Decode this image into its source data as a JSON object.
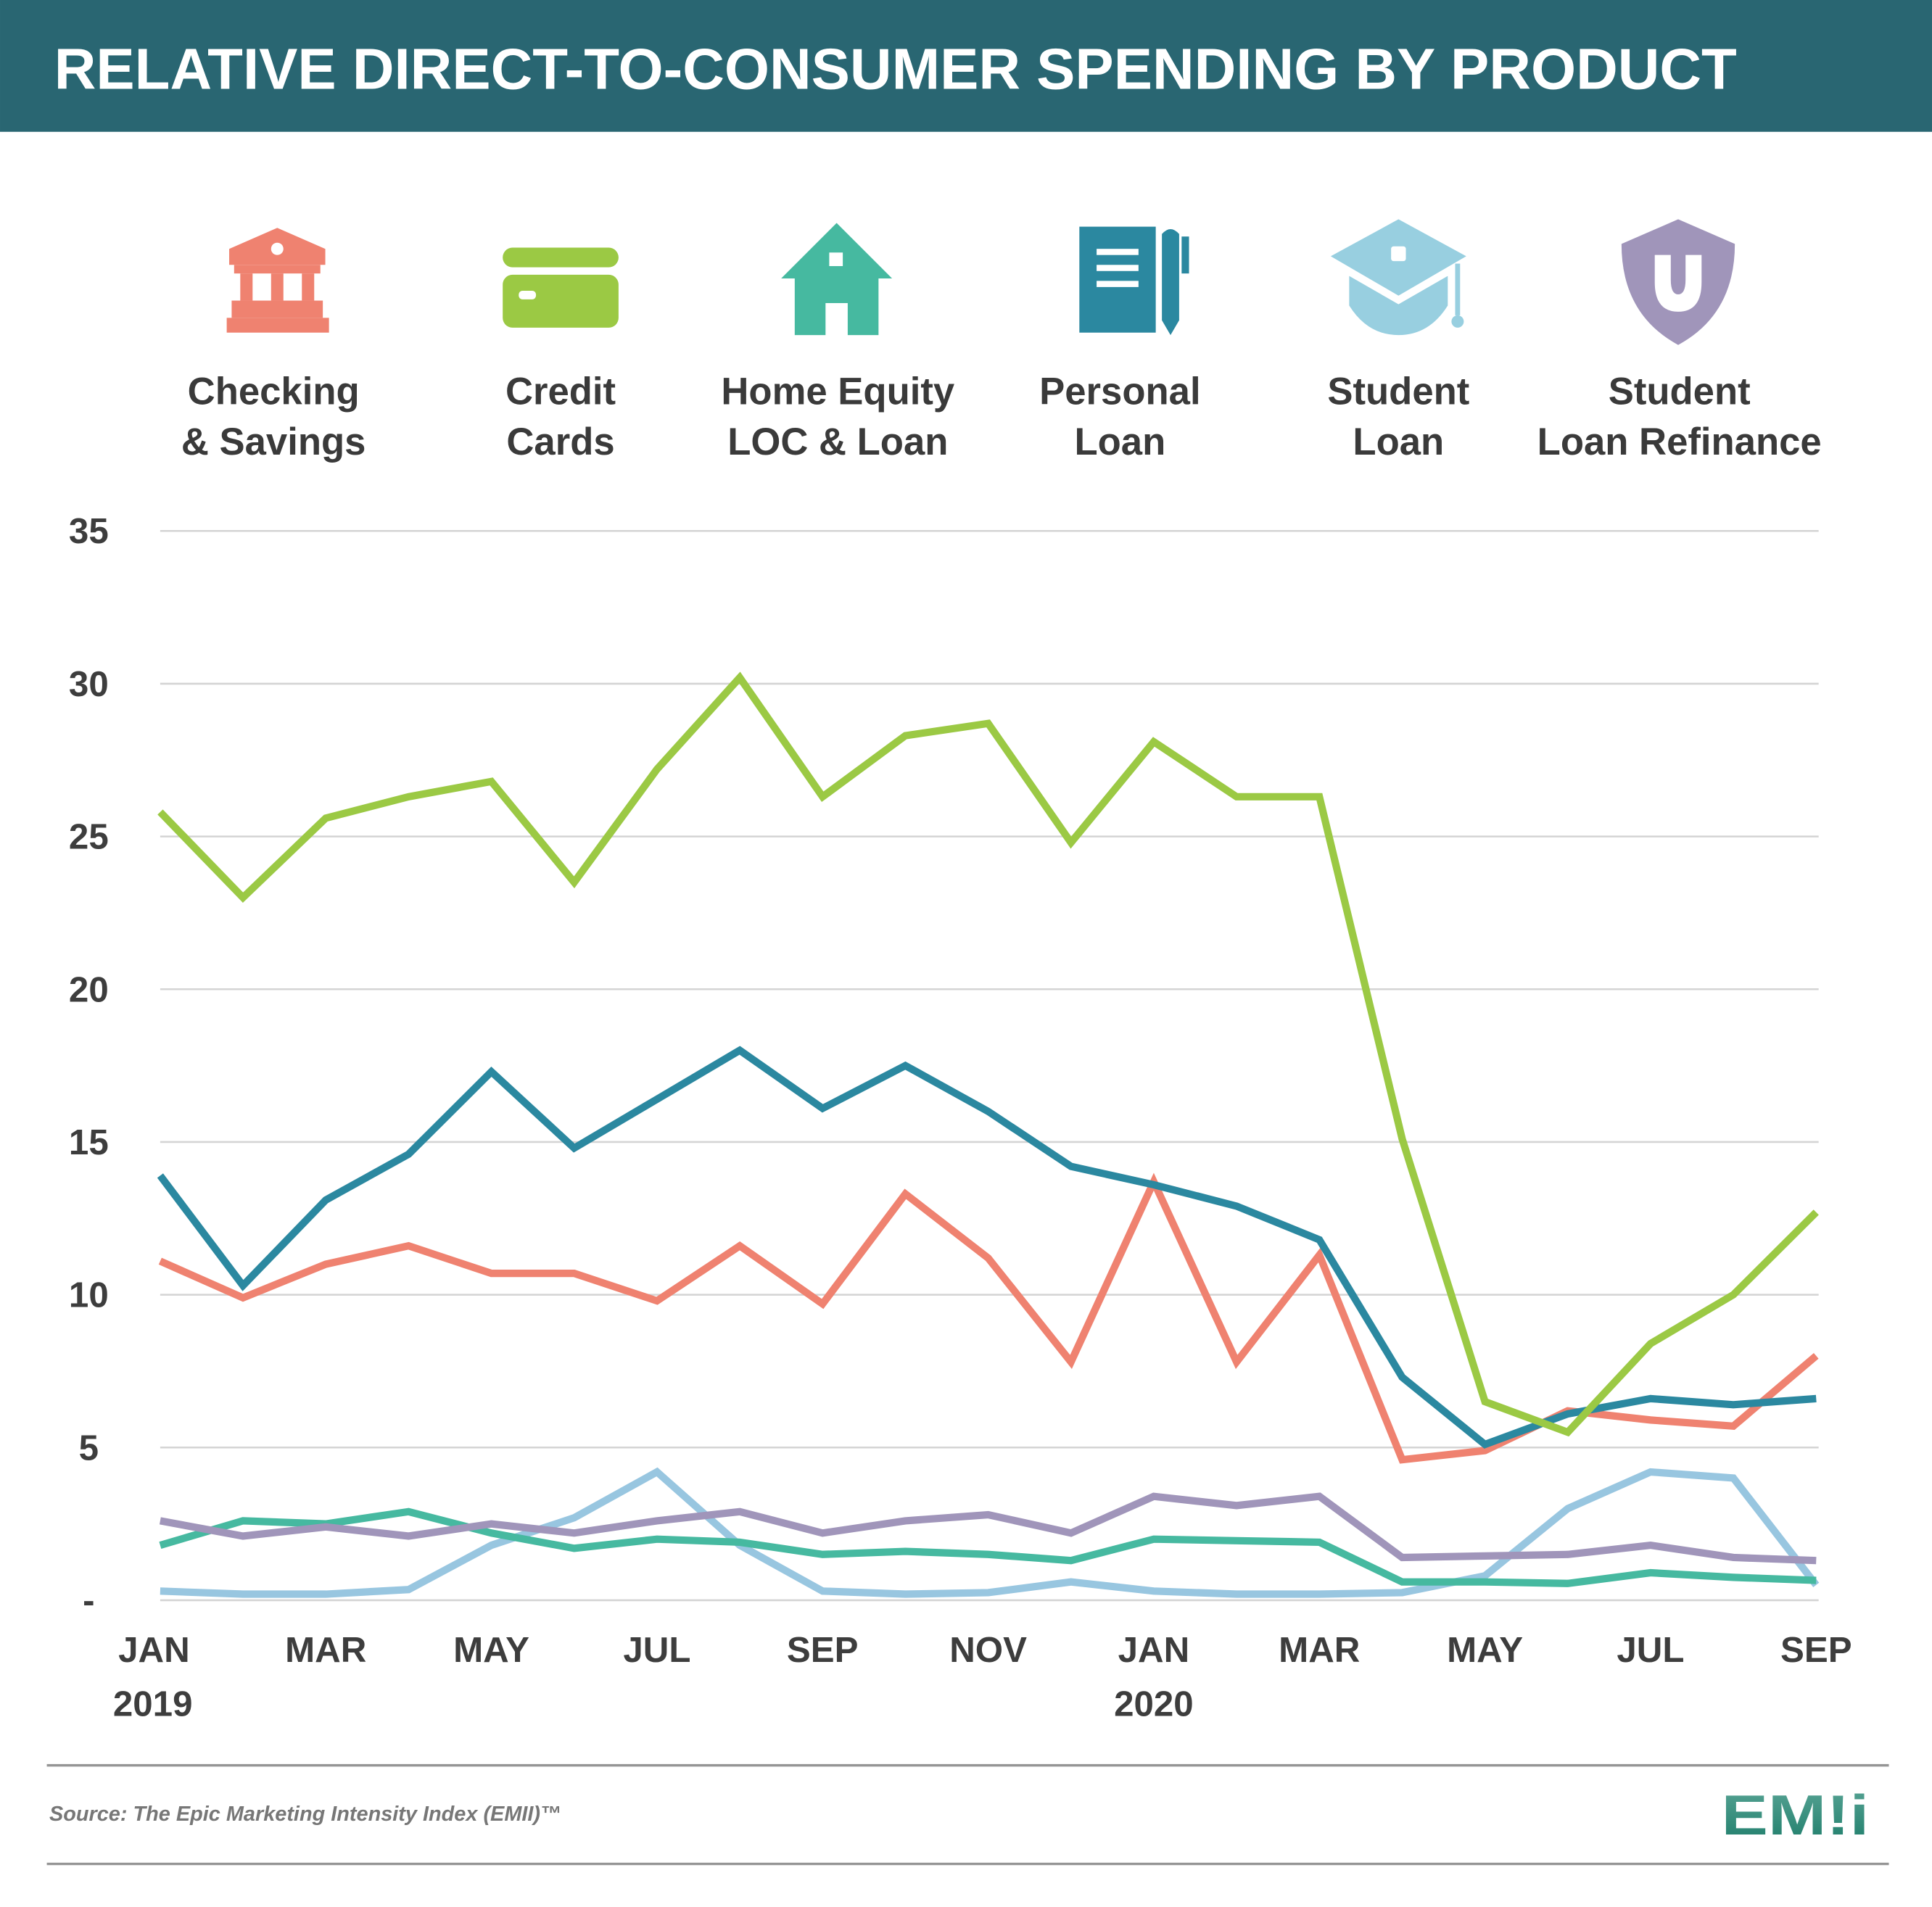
{
  "header": {
    "title": "RELATIVE DIRECT-TO-CONSUMER SPENDING BY PRODUCT",
    "background": "#296672"
  },
  "footer": {
    "source": "Source: The Epic Marketing Intensity Index (EMII)™",
    "logo_text": "EMII"
  },
  "legend": [
    {
      "line1": "Checking",
      "line2": "& Savings",
      "icon": "bank-icon",
      "color": "#ef8270"
    },
    {
      "line1": "Credit",
      "line2": "Cards",
      "icon": "credit-card-icon",
      "color": "#9bc944"
    },
    {
      "line1": "Home Equity",
      "line2": "LOC & Loan",
      "icon": "house-icon",
      "color": "#46b9a0"
    },
    {
      "line1": "Personal",
      "line2": "Loan",
      "icon": "notebook-pen-icon",
      "color": "#2b88a0"
    },
    {
      "line1": "Student",
      "line2": "Loan",
      "icon": "graduation-cap-icon",
      "color": "#98cfe0"
    },
    {
      "line1": "Student",
      "line2": "Loan Refinance",
      "icon": "shield-u-icon",
      "color": "#a095ba"
    }
  ],
  "chart_data": {
    "type": "line",
    "title": "RELATIVE DIRECT-TO-CONSUMER SPENDING BY PRODUCT",
    "xlabel": "",
    "ylabel": "",
    "ylim": [
      0,
      35
    ],
    "grid": true,
    "legend_position": "top",
    "y_ticks": [
      "35",
      "30",
      "25",
      "20",
      "15",
      "10",
      "5",
      "-"
    ],
    "y_tick_values": [
      35,
      30,
      25,
      20,
      15,
      10,
      5,
      0
    ],
    "x": [
      "Jan 2019",
      "Feb 2019",
      "Mar 2019",
      "Apr 2019",
      "May 2019",
      "Jun 2019",
      "Jul 2019",
      "Aug 2019",
      "Sep 2019",
      "Oct 2019",
      "Nov 2019",
      "Dec 2019",
      "Jan 2020",
      "Feb 2020",
      "Mar 2020",
      "Apr 2020",
      "May 2020",
      "Jun 2020",
      "Jul 2020",
      "Aug 2020",
      "Sep 2020"
    ],
    "x_tick_labels": [
      {
        "label": "JAN",
        "year": "2019",
        "index": 0
      },
      {
        "label": "MAR",
        "index": 2
      },
      {
        "label": "MAY",
        "index": 4
      },
      {
        "label": "JUL",
        "index": 6
      },
      {
        "label": "SEP",
        "index": 8
      },
      {
        "label": "NOV",
        "index": 10
      },
      {
        "label": "JAN",
        "year": "2020",
        "index": 12
      },
      {
        "label": "MAR",
        "index": 14
      },
      {
        "label": "MAY",
        "index": 16
      },
      {
        "label": "JUL",
        "index": 18
      },
      {
        "label": "SEP",
        "index": 20
      }
    ],
    "series": [
      {
        "name": "Checking & Savings",
        "color": "#ef8270",
        "values": [
          11.1,
          9.9,
          11.0,
          11.6,
          10.7,
          10.7,
          9.8,
          11.6,
          9.7,
          13.3,
          11.2,
          7.8,
          13.7,
          7.8,
          11.3,
          4.6,
          4.9,
          6.2,
          5.9,
          5.7,
          8.0
        ]
      },
      {
        "name": "Credit Cards",
        "color": "#9bc944",
        "values": [
          25.8,
          23.0,
          25.6,
          26.3,
          26.8,
          23.5,
          27.2,
          30.2,
          26.3,
          28.3,
          28.7,
          24.8,
          28.1,
          26.3,
          26.3,
          15.1,
          6.5,
          5.5,
          8.4,
          10.0,
          12.7
        ]
      },
      {
        "name": "Home Equity LOC & Loan",
        "color": "#46b9a0",
        "values": [
          1.8,
          2.6,
          2.5,
          2.9,
          2.2,
          1.7,
          2.0,
          1.9,
          1.5,
          1.6,
          1.5,
          1.3,
          2.0,
          1.95,
          1.9,
          0.6,
          0.6,
          0.55,
          0.9,
          0.75,
          0.65
        ]
      },
      {
        "name": "Personal Loan",
        "color": "#2b88a0",
        "values": [
          13.9,
          10.3,
          13.1,
          14.6,
          17.3,
          14.8,
          16.4,
          18.0,
          16.1,
          17.5,
          16.0,
          14.2,
          13.6,
          12.9,
          11.8,
          7.3,
          5.1,
          6.1,
          6.6,
          6.4,
          6.6
        ]
      },
      {
        "name": "Student Loan",
        "color": "#98c6e0",
        "values": [
          0.3,
          0.2,
          0.2,
          0.35,
          1.8,
          2.7,
          4.2,
          1.8,
          0.3,
          0.2,
          0.25,
          0.6,
          0.3,
          0.2,
          0.2,
          0.25,
          0.8,
          3.0,
          4.2,
          4.0,
          0.5
        ]
      },
      {
        "name": "Student Loan Refinance",
        "color": "#a095ba",
        "values": [
          2.6,
          2.1,
          2.4,
          2.1,
          2.5,
          2.2,
          2.6,
          2.9,
          2.2,
          2.6,
          2.8,
          2.2,
          3.4,
          3.1,
          3.4,
          1.4,
          1.45,
          1.5,
          1.8,
          1.4,
          1.3
        ]
      }
    ]
  }
}
